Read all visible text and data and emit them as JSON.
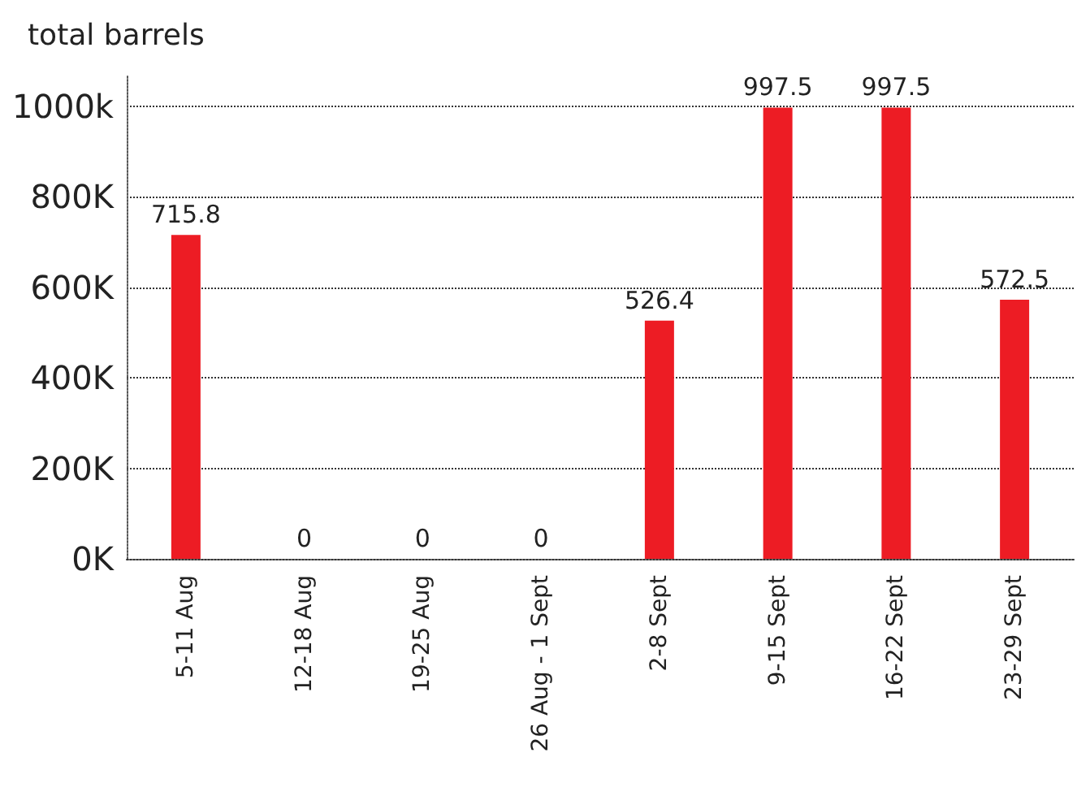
{
  "chart_data": {
    "type": "bar",
    "ylabel": "total barrels",
    "categories": [
      "5-11 Aug",
      "12-18 Aug",
      "19-25 Aug",
      "26 Aug - 1 Sept",
      "2-8 Sept",
      "9-15 Sept",
      "16-22 Sept",
      "23-29 Sept"
    ],
    "values": [
      715.8,
      0,
      0,
      0,
      526.4,
      997.5,
      997.5,
      572.5
    ],
    "color": "#ed1c24",
    "ylim": [
      0,
      1070
    ],
    "yticks": [
      {
        "value": 0,
        "label": "0K"
      },
      {
        "value": 200,
        "label": "200K"
      },
      {
        "value": 400,
        "label": "400K"
      },
      {
        "value": 600,
        "label": "600K"
      },
      {
        "value": 800,
        "label": "800K"
      },
      {
        "value": 1000,
        "label": "1000k"
      }
    ],
    "grid": "y",
    "data_labels": true
  }
}
